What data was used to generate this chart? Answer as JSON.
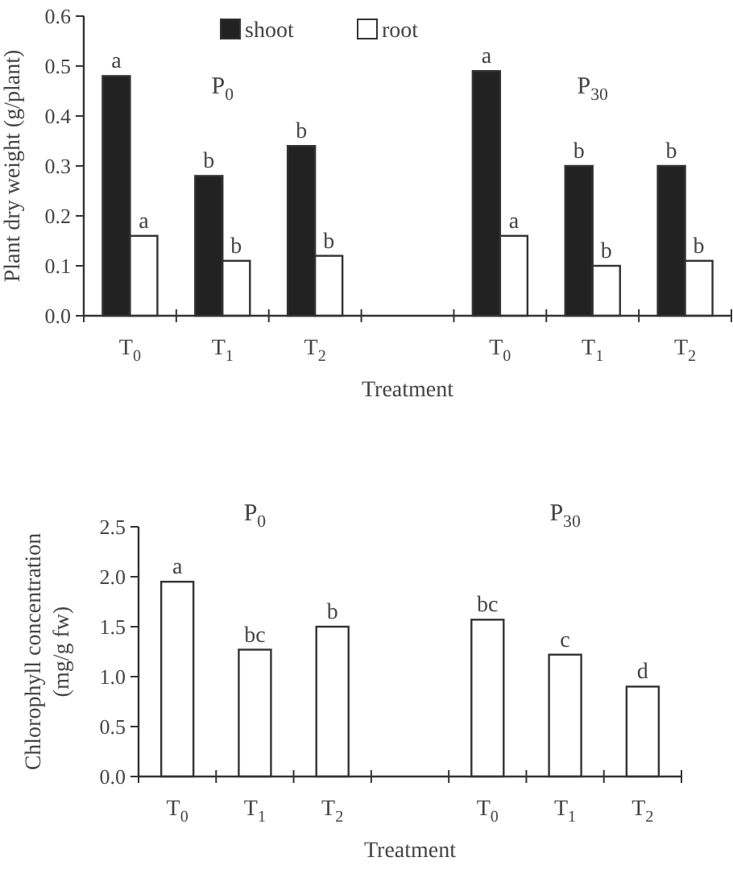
{
  "chart_data": [
    {
      "type": "bar",
      "xlabel": "Treatment",
      "ylabel": "Plant dry weight (g/plant)",
      "categories": [
        "T$_{0}$",
        "T$_{1}$",
        "T$_{2}$",
        null,
        "T$_{0}$",
        "T$_{1}$",
        "T$_{2}$"
      ],
      "series": [
        {
          "name": "shoot",
          "color": "#222222",
          "values": [
            0.48,
            0.28,
            0.34,
            null,
            0.49,
            0.3,
            0.3
          ],
          "value_labels": [
            "a",
            "b",
            "b",
            null,
            "a",
            "b",
            "b"
          ]
        },
        {
          "name": "root",
          "color": "#ffffff",
          "values": [
            0.16,
            0.11,
            0.12,
            null,
            0.16,
            0.1,
            0.11
          ],
          "value_labels": [
            "a",
            "b",
            "b",
            null,
            "a",
            "b",
            "b"
          ]
        }
      ],
      "ylim": [
        0,
        0.6
      ],
      "yticks": [
        {
          "value": 0,
          "label": "0.0"
        },
        0.1,
        0.2,
        0.3,
        0.4,
        0.5,
        0.6
      ],
      "legend": "top",
      "annotations": [
        "P$_{0}$",
        "P$_{30}$"
      ]
    },
    {
      "type": "bar",
      "xlabel": "Treatment",
      "ylabel": "Chlorophyll concentration (mg/g fw)",
      "categories": [
        "T$_{0}$",
        "T$_{1}$",
        "T$_{2}$",
        null,
        "T$_{0}$",
        "T$_{1}$",
        "T$_{2}$"
      ],
      "series": [
        {
          "color": "#ffffff",
          "values": [
            1.95,
            1.27,
            1.5,
            null,
            1.57,
            1.22,
            0.9
          ],
          "value_labels": [
            "a",
            "bc",
            "b",
            null,
            "bc",
            "c",
            "d"
          ]
        }
      ],
      "ylim": [
        0,
        2.5
      ],
      "yticks": [
        {
          "value": 0,
          "label": "0.0"
        },
        0.5,
        {
          "value": 1,
          "label": "1.0"
        },
        1.5,
        {
          "value": 2,
          "label": "2.0"
        },
        2.5
      ],
      "annotations": [
        "P$_{0}$",
        "P$_{30}$"
      ]
    }
  ]
}
